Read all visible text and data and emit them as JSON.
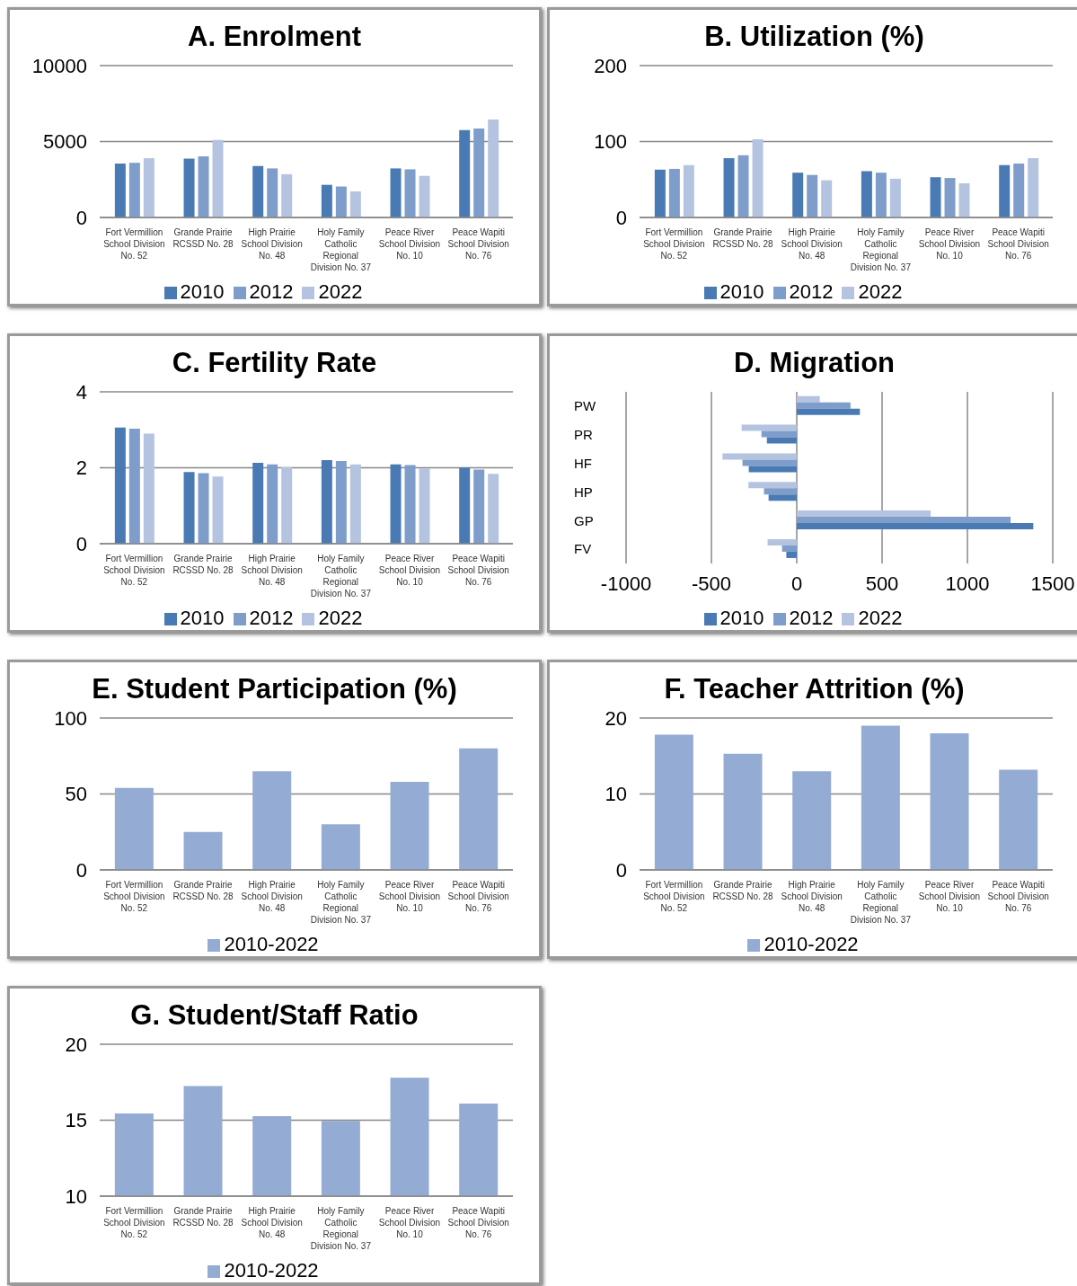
{
  "chart_data": [
    {
      "type": "bar",
      "title": "A. Enrolment",
      "categories": [
        "Fort Vermillion School Division No. 52",
        "Grande Prairie RCSSD No. 28",
        "High Prairie School Division No. 48",
        "Holy Family Catholic Regional Division No. 37",
        "Peace River School Division No. 10",
        "Peace Wapiti School Division No. 76"
      ],
      "series": [
        {
          "name": "2010",
          "color": "#4a7ab4",
          "values": [
            3550,
            3870,
            3390,
            2150,
            3230,
            5750
          ]
        },
        {
          "name": "2012",
          "color": "#7f9dcb",
          "values": [
            3600,
            4030,
            3230,
            2040,
            3170,
            5860
          ]
        },
        {
          "name": "2022",
          "color": "#b4c4e0",
          "values": [
            3900,
            5110,
            2850,
            1720,
            2740,
            6450
          ]
        }
      ],
      "ylim": [
        0,
        10000
      ],
      "yticks": [
        0,
        5000,
        10000
      ],
      "grid": "y",
      "legend": "bottom"
    },
    {
      "type": "bar",
      "title": "B. Utilization (%)",
      "categories": [
        "Fort Vermillion School Division No. 52",
        "Grande Prairie RCSSD No. 28",
        "High Prairie School Division No. 48",
        "Holy Family Catholic Regional Division No. 37",
        "Peace River School Division No. 10",
        "Peace Wapiti School Division No. 76"
      ],
      "series": [
        {
          "name": "2010",
          "color": "#4a7ab4",
          "values": [
            63,
            78,
            59,
            61,
            53,
            69
          ]
        },
        {
          "name": "2012",
          "color": "#7f9dcb",
          "values": [
            64,
            82,
            56,
            59,
            52,
            71
          ]
        },
        {
          "name": "2022",
          "color": "#b4c4e0",
          "values": [
            69,
            103,
            49,
            51,
            45,
            78
          ]
        }
      ],
      "ylim": [
        0,
        200
      ],
      "yticks": [
        0,
        100,
        200
      ],
      "grid": "y",
      "legend": "bottom"
    },
    {
      "type": "bar",
      "title": "C. Fertility Rate",
      "categories": [
        "Fort Vermillion School Division No. 52",
        "Grande Prairie RCSSD No. 28",
        "High Prairie School Division No. 48",
        "Holy Family Catholic Regional Division No. 37",
        "Peace River School Division No. 10",
        "Peace Wapiti School Division No. 76"
      ],
      "series": [
        {
          "name": "2010",
          "color": "#4a7ab4",
          "values": [
            3.06,
            1.89,
            2.13,
            2.2,
            2.09,
            2.0
          ]
        },
        {
          "name": "2012",
          "color": "#7f9dcb",
          "values": [
            3.03,
            1.86,
            2.09,
            2.18,
            2.07,
            1.95
          ]
        },
        {
          "name": "2022",
          "color": "#b4c4e0",
          "values": [
            2.9,
            1.77,
            2.02,
            2.09,
            1.98,
            1.84
          ]
        }
      ],
      "ylim": [
        0,
        4
      ],
      "yticks": [
        0,
        2,
        4
      ],
      "grid": "y",
      "legend": "bottom"
    },
    {
      "type": "bar",
      "title": "D. Migration",
      "orientation": "horizontal",
      "categories": [
        "PW",
        "PR",
        "HF",
        "HP",
        "GP",
        "FV"
      ],
      "series": [
        {
          "name": "2022",
          "color": "#b4c4e0",
          "values": [
            135,
            -323,
            -435,
            -283,
            785,
            -171
          ]
        },
        {
          "name": "2012",
          "color": "#7f9dcb",
          "values": [
            315,
            -207,
            -318,
            -192,
            1253,
            -86
          ]
        },
        {
          "name": "2010",
          "color": "#4a7ab4",
          "values": [
            370,
            -175,
            -281,
            -165,
            1386,
            -61
          ]
        }
      ],
      "xlim": [
        -1000,
        1500
      ],
      "xticks": [
        -1000,
        -500,
        0,
        500,
        1000,
        1500
      ],
      "grid": "x",
      "legend": "bottom"
    },
    {
      "type": "bar",
      "title": "E. Student Participation (%)",
      "categories": [
        "Fort Vermillion School Division No. 52",
        "Grande Prairie RCSSD No. 28",
        "High Prairie School Division No. 48",
        "Holy Family Catholic Regional Division No. 37",
        "Peace River School Division No. 10",
        "Peace Wapiti School Division No. 76"
      ],
      "series": [
        {
          "name": "2010-2022",
          "color": "#94abd3",
          "values": [
            54,
            25,
            65,
            30,
            58,
            80
          ]
        }
      ],
      "ylim": [
        0,
        100
      ],
      "yticks": [
        0,
        50,
        100
      ],
      "grid": "y",
      "legend": "bottom"
    },
    {
      "type": "bar",
      "title": "F. Teacher Attrition (%)",
      "categories": [
        "Fort Vermillion School Division No. 52",
        "Grande Prairie RCSSD No. 28",
        "High Prairie School Division No. 48",
        "Holy Family Catholic Regional Division No. 37",
        "Peace River School Division No. 10",
        "Peace Wapiti School Division No. 76"
      ],
      "series": [
        {
          "name": "2010-2022",
          "color": "#94abd3",
          "values": [
            17.8,
            15.3,
            13,
            19,
            18,
            13.2
          ]
        }
      ],
      "ylim": [
        0,
        20
      ],
      "yticks": [
        0,
        10,
        20
      ],
      "grid": "y",
      "legend": "bottom"
    },
    {
      "type": "bar",
      "title": "G. Student/Staff Ratio",
      "categories": [
        "Fort Vermillion School Division No. 52",
        "Grande Prairie RCSSD No. 28",
        "High Prairie School Division No. 48",
        "Holy Family Catholic Regional Division No. 37",
        "Peace River School Division No. 10",
        "Peace Wapiti School Division No. 76"
      ],
      "series": [
        {
          "name": "2010-2022",
          "color": "#94abd3",
          "values": [
            15.45,
            17.25,
            15.27,
            14.95,
            17.8,
            16.1
          ]
        }
      ],
      "ylim": [
        10,
        20
      ],
      "yticks": [
        10,
        15,
        20
      ],
      "grid": "y",
      "legend": "bottom"
    }
  ]
}
